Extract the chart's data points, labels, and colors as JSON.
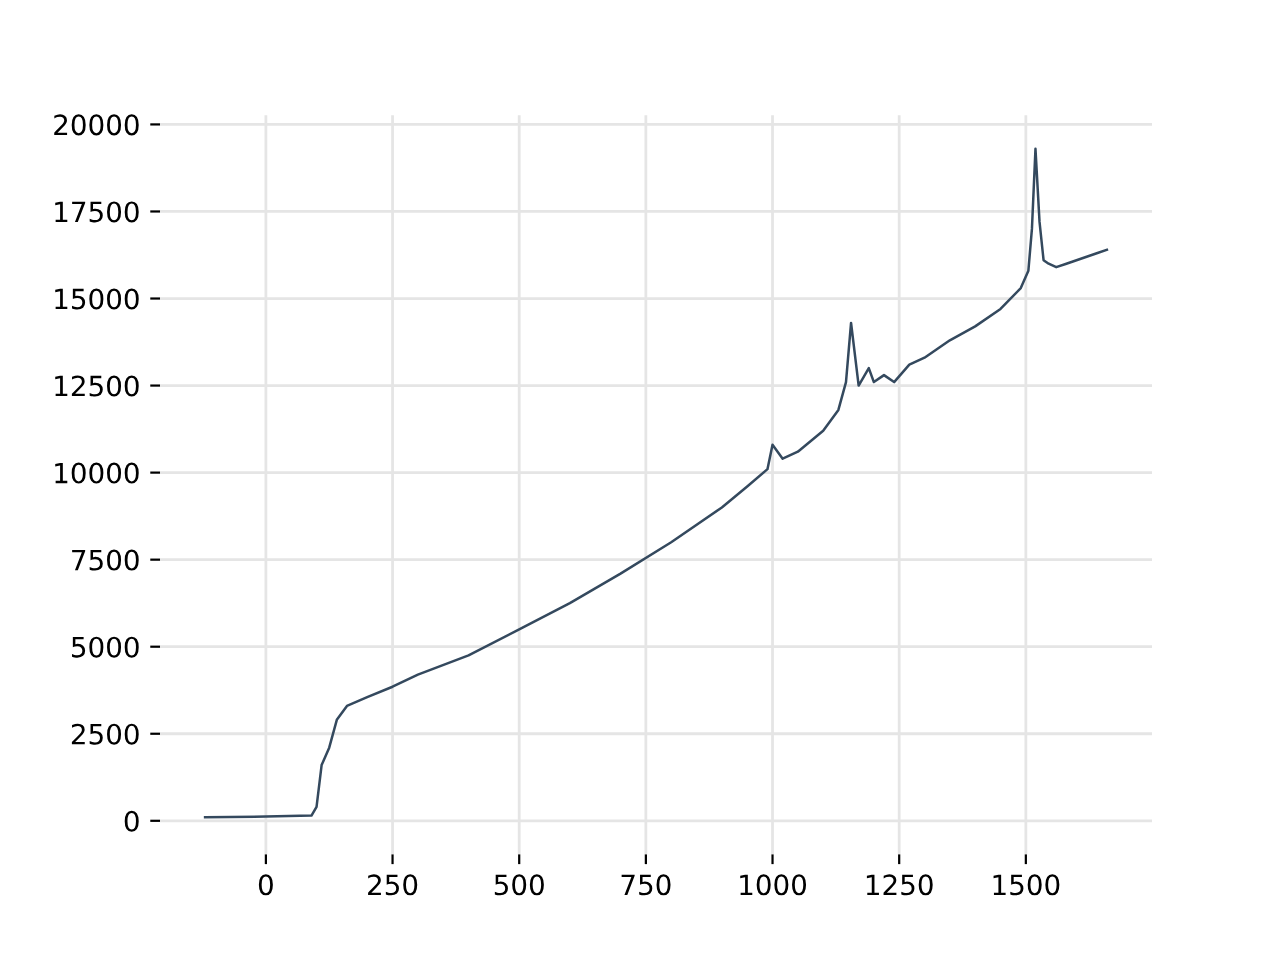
{
  "chart_data": {
    "type": "line",
    "xlim": [
      -209,
      1749
    ],
    "ylim": [
      -965,
      20265
    ],
    "xticks": [
      0,
      250,
      500,
      750,
      1000,
      1250,
      1500
    ],
    "yticks": [
      0,
      2500,
      5000,
      7500,
      10000,
      12500,
      15000,
      17500,
      20000
    ],
    "grid": true,
    "series": [
      {
        "color": "#34495e",
        "x": [
          -120,
          0,
          90,
          100,
          110,
          125,
          140,
          160,
          200,
          250,
          300,
          400,
          500,
          600,
          700,
          800,
          900,
          950,
          990,
          1000,
          1020,
          1050,
          1100,
          1130,
          1145,
          1155,
          1170,
          1190,
          1200,
          1220,
          1240,
          1270,
          1300,
          1350,
          1400,
          1450,
          1490,
          1505,
          1512,
          1519,
          1527,
          1535,
          1545,
          1560,
          1580,
          1600,
          1620,
          1640,
          1660
        ],
        "values": [
          100,
          120,
          150,
          400,
          1600,
          2100,
          2900,
          3300,
          3550,
          3850,
          4200,
          4750,
          5500,
          6250,
          7100,
          8000,
          9000,
          9600,
          10100,
          10800,
          10400,
          10600,
          11200,
          11800,
          12600,
          14300,
          12500,
          13000,
          12600,
          12800,
          12600,
          13100,
          13300,
          13800,
          14200,
          14700,
          15300,
          15800,
          17000,
          19300,
          17200,
          16100,
          16000,
          15900,
          16000,
          16100,
          16200,
          16300,
          16400
        ]
      }
    ]
  }
}
